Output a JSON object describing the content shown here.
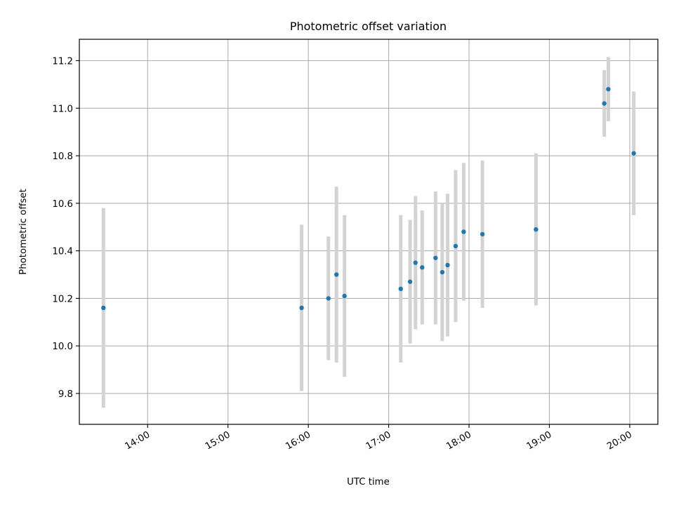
{
  "chart_data": {
    "type": "scatter",
    "title": "Photometric offset variation",
    "xlabel": "UTC time",
    "ylabel": "Photometric offset",
    "x_ticks": [
      "14:00",
      "15:00",
      "16:00",
      "17:00",
      "18:00",
      "19:00",
      "20:00"
    ],
    "y_ticks": [
      "9.8",
      "10.0",
      "10.2",
      "10.4",
      "10.6",
      "10.8",
      "11.0",
      "11.2"
    ],
    "xlim": [
      "13:09",
      "20:21"
    ],
    "ylim": [
      9.67,
      11.29
    ],
    "grid": true,
    "colors": {
      "point": "#1f77b4",
      "errorbar": "#d3d3d3",
      "grid": "#b0b0b0"
    },
    "points": [
      {
        "x": "13:27",
        "y": 10.16,
        "err": 0.42
      },
      {
        "x": "15:55",
        "y": 10.16,
        "err": 0.35
      },
      {
        "x": "16:15",
        "y": 10.2,
        "err": 0.26
      },
      {
        "x": "16:21",
        "y": 10.3,
        "err": 0.37
      },
      {
        "x": "16:27",
        "y": 10.21,
        "err": 0.34
      },
      {
        "x": "17:09",
        "y": 10.24,
        "err": 0.31
      },
      {
        "x": "17:16",
        "y": 10.27,
        "err": 0.26
      },
      {
        "x": "17:20",
        "y": 10.35,
        "err": 0.28
      },
      {
        "x": "17:25",
        "y": 10.33,
        "err": 0.24
      },
      {
        "x": "17:35",
        "y": 10.37,
        "err": 0.28
      },
      {
        "x": "17:40",
        "y": 10.31,
        "err": 0.29
      },
      {
        "x": "17:44",
        "y": 10.34,
        "err": 0.3
      },
      {
        "x": "17:50",
        "y": 10.42,
        "err": 0.32
      },
      {
        "x": "17:56",
        "y": 10.48,
        "err": 0.29
      },
      {
        "x": "18:10",
        "y": 10.47,
        "err": 0.31
      },
      {
        "x": "18:50",
        "y": 10.49,
        "err": 0.32
      },
      {
        "x": "19:41",
        "y": 11.02,
        "err": 0.14
      },
      {
        "x": "19:44",
        "y": 11.08,
        "err": 0.135
      },
      {
        "x": "20:03",
        "y": 10.81,
        "err": 0.26
      }
    ]
  }
}
